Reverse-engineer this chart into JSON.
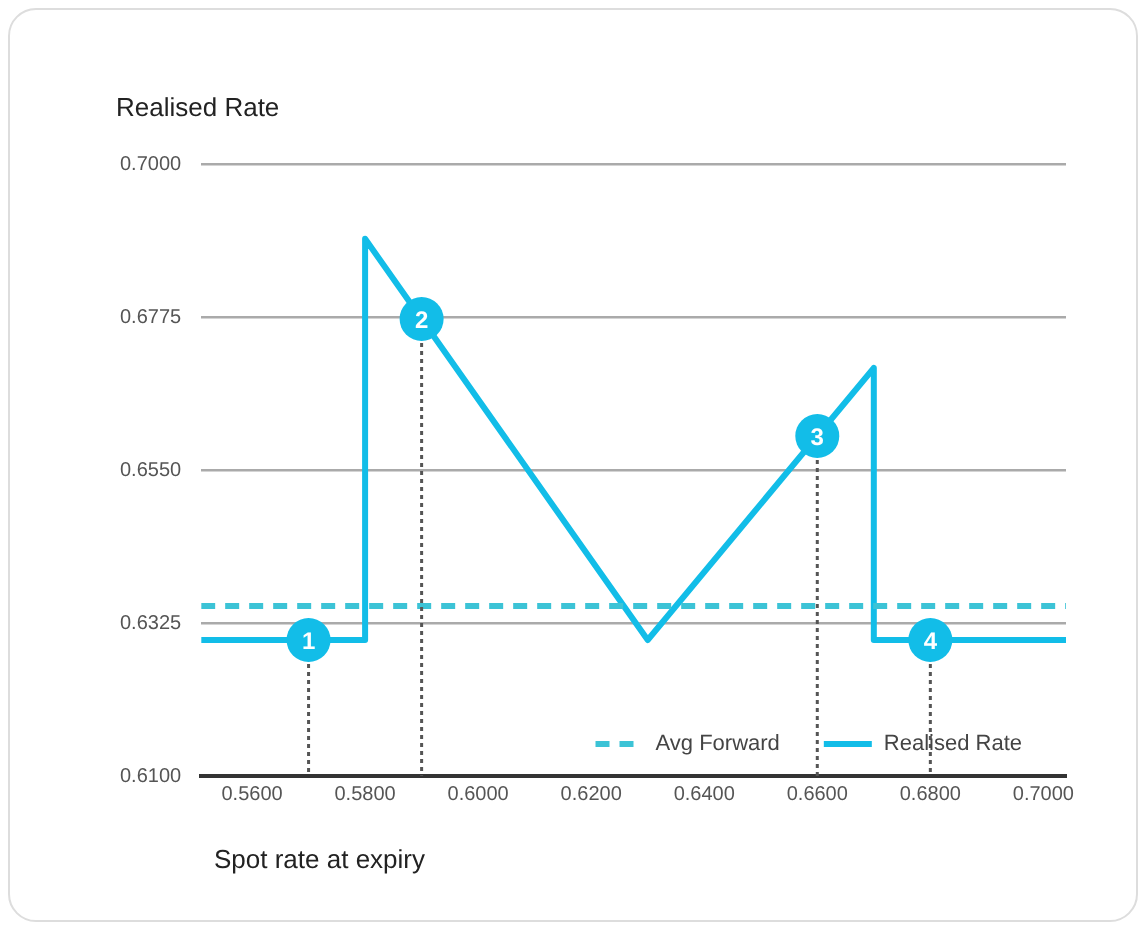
{
  "chart_data": {
    "type": "line",
    "ylabel": "Realised Rate",
    "xlabel": "Spot rate at expiry",
    "xlim": [
      0.551,
      0.704
    ],
    "ylim": [
      0.61,
      0.7
    ],
    "xticks": [
      {
        "value": 0.56,
        "label": "0.5600"
      },
      {
        "value": 0.58,
        "label": "0.5800"
      },
      {
        "value": 0.6,
        "label": "0.6000"
      },
      {
        "value": 0.62,
        "label": "0.6200"
      },
      {
        "value": 0.64,
        "label": "0.6400"
      },
      {
        "value": 0.66,
        "label": "0.6600"
      },
      {
        "value": 0.68,
        "label": "0.6800"
      },
      {
        "value": 0.7,
        "label": "0.7000"
      }
    ],
    "yticks": [
      {
        "value": 0.61,
        "label": "0.6100"
      },
      {
        "value": 0.6325,
        "label": "0.6325"
      },
      {
        "value": 0.655,
        "label": "0.6550"
      },
      {
        "value": 0.6775,
        "label": "0.6775"
      },
      {
        "value": 0.7,
        "label": "0.7000"
      }
    ],
    "grid": "y",
    "legend": "bottom right",
    "marker": "none",
    "series": [
      {
        "name": "Avg Forward",
        "color": "#3cc3d6",
        "line_style": "dashed",
        "x": [
          0.551,
          0.704
        ],
        "values": [
          0.635,
          0.635
        ]
      },
      {
        "name": "Realised Rate",
        "color": "#12bde8",
        "line_style": "solid",
        "x": [
          0.551,
          0.58,
          0.58,
          0.63,
          0.67,
          0.67,
          0.704
        ],
        "values": [
          0.63,
          0.63,
          0.689,
          0.63,
          0.67,
          0.63,
          0.63
        ]
      }
    ],
    "annotations": [
      {
        "text": "1",
        "x": 0.57,
        "y": 0.63
      },
      {
        "text": "2",
        "x": 0.59,
        "y": 0.6772
      },
      {
        "text": "3",
        "x": 0.66,
        "y": 0.66
      },
      {
        "text": "4",
        "x": 0.68,
        "y": 0.63
      }
    ]
  }
}
